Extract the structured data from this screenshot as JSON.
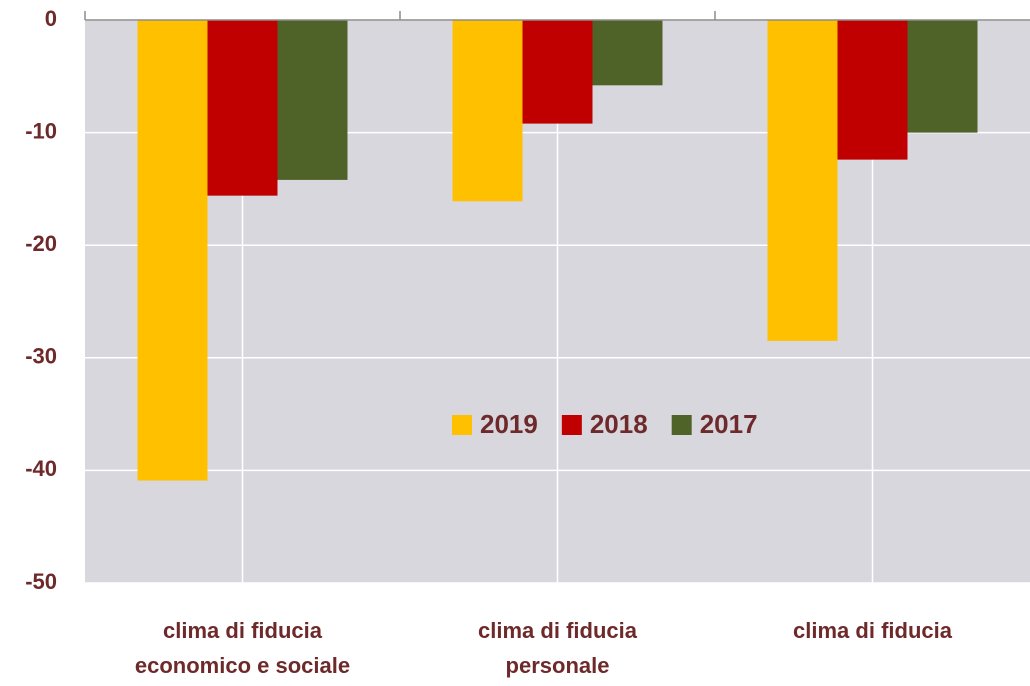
{
  "chart_data": {
    "type": "bar",
    "categories": [
      [
        "clima di fiducia",
        "economico e sociale"
      ],
      [
        "clima di fiducia",
        "personale"
      ],
      [
        "clima di fiducia"
      ]
    ],
    "series": [
      {
        "name": "2019",
        "color": "#ffc000",
        "values": [
          -40.9,
          -16.1,
          -28.5
        ]
      },
      {
        "name": "2018",
        "color": "#c00000",
        "values": [
          -15.6,
          -9.2,
          -12.4
        ]
      },
      {
        "name": "2017",
        "color": "#4f6228",
        "values": [
          -14.2,
          -5.8,
          -10
        ]
      }
    ],
    "ylim": [
      -50,
      0
    ],
    "yticks": [
      0,
      -10,
      -20,
      -30,
      -40,
      -50
    ],
    "grid": true,
    "legend": "center"
  }
}
